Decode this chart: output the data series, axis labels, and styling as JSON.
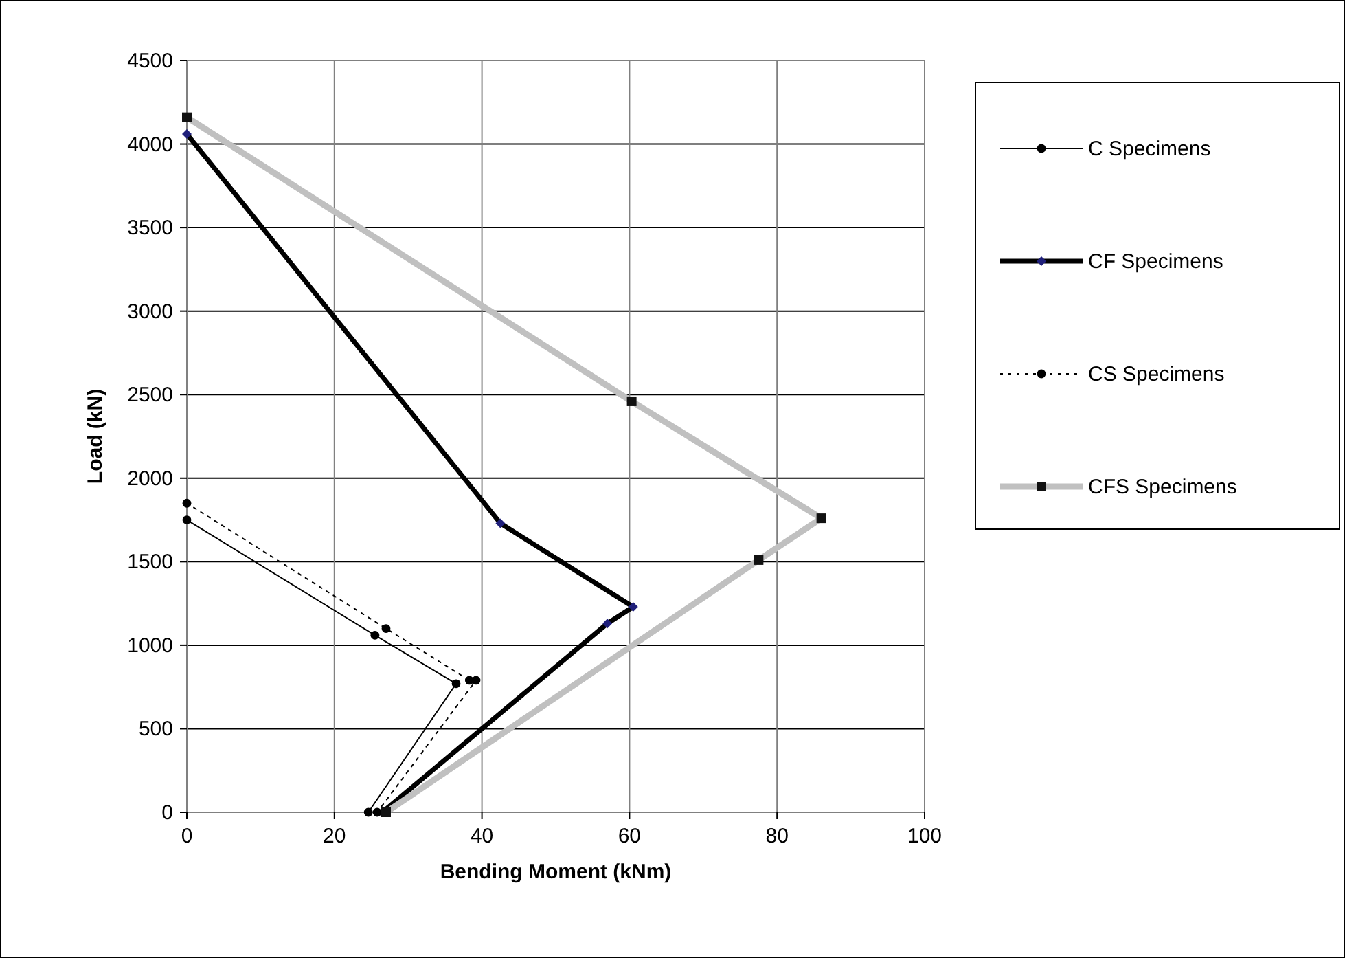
{
  "chart_data": {
    "type": "line",
    "xlabel": "Bending Moment (kNm)",
    "ylabel": "Load (kN)",
    "xlim": [
      0,
      100
    ],
    "xticks": [
      0,
      20,
      40,
      60,
      80,
      100
    ],
    "ylim": [
      0,
      4500
    ],
    "yticks": [
      0,
      500,
      1000,
      1500,
      2000,
      2500,
      3000,
      3500,
      4000,
      4500
    ],
    "grid": true,
    "legend": "right",
    "series": [
      {
        "name": "C Specimens",
        "color": "#000000",
        "marker": "circle",
        "line_style": "solid",
        "x": [
          0,
          25.5,
          36.5,
          24.6
        ],
        "values": [
          1750,
          1060,
          770,
          0
        ]
      },
      {
        "name": "CF Specimens",
        "color": "#000000",
        "marker": "diamond",
        "line_style": "solid",
        "x": [
          0,
          42.5,
          60.5,
          57,
          26.5
        ],
        "values": [
          4060,
          1730,
          1230,
          1130,
          0
        ]
      },
      {
        "name": "CS Specimens",
        "color": "#000000",
        "marker": "circle",
        "line_style": "dotted",
        "x": [
          0,
          27,
          38.3,
          39.2,
          25.8
        ],
        "values": [
          1850,
          1100,
          790,
          790,
          0
        ]
      },
      {
        "name": "CFS Specimens",
        "color": "#c0c0c0",
        "marker": "square",
        "line_style": "solid",
        "x": [
          0,
          60.3,
          86,
          77.5,
          27
        ],
        "values": [
          4160,
          2460,
          1760,
          1510,
          0
        ]
      }
    ]
  }
}
